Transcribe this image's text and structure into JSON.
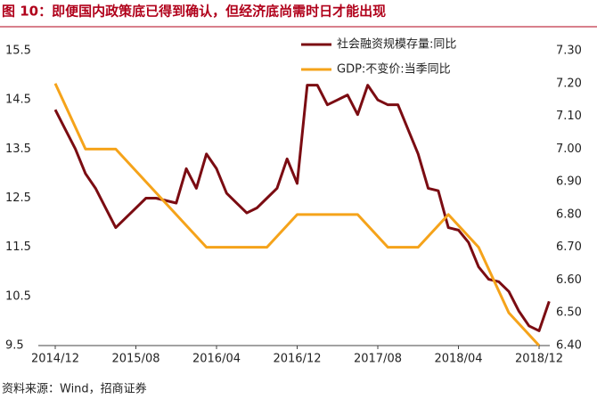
{
  "chart_data": {
    "type": "line",
    "title": "图 10：即便国内政策底已得到确认，但经济底尚需时日才能出现",
    "source": "资料来源：Wind，招商证券",
    "xticks": [
      "2014/12",
      "2015/08",
      "2016/04",
      "2016/12",
      "2017/08",
      "2018/04",
      "2018/12"
    ],
    "ylim": [
      9.5,
      15.5
    ],
    "yticks": [
      9.5,
      10.5,
      11.5,
      12.5,
      13.5,
      14.5,
      15.5
    ],
    "y2lim": [
      6.4,
      7.3
    ],
    "y2ticks": [
      {
        "value": 6.4,
        "label": "6.40"
      },
      {
        "value": 6.5,
        "label": "6.50"
      },
      {
        "value": 6.6,
        "label": "6.60"
      },
      {
        "value": 6.7,
        "label": "6.70"
      },
      {
        "value": 6.8,
        "label": "6.80"
      },
      {
        "value": 6.9,
        "label": "6.90"
      },
      {
        "value": 7.0,
        "label": "7.00"
      },
      {
        "value": 7.1,
        "label": "7.10"
      },
      {
        "value": 7.2,
        "label": "7.20"
      },
      {
        "value": 7.3,
        "label": "7.30"
      }
    ],
    "series": [
      {
        "name": "社会融资规模存量:同比",
        "color": "#7b0c12",
        "axis": "y",
        "x": [
          "2014/12",
          "2015/01",
          "2015/02",
          "2015/03",
          "2015/04",
          "2015/05",
          "2015/06",
          "2015/07",
          "2015/08",
          "2015/09",
          "2015/10",
          "2015/11",
          "2015/12",
          "2016/01",
          "2016/02",
          "2016/03",
          "2016/04",
          "2016/05",
          "2016/06",
          "2016/07",
          "2016/08",
          "2016/09",
          "2016/10",
          "2016/11",
          "2016/12",
          "2017/01",
          "2017/02",
          "2017/03",
          "2017/04",
          "2017/05",
          "2017/06",
          "2017/07",
          "2017/08",
          "2017/09",
          "2017/10",
          "2017/11",
          "2017/12",
          "2018/01",
          "2018/02",
          "2018/03",
          "2018/04",
          "2018/05",
          "2018/06",
          "2018/07",
          "2018/08",
          "2018/09",
          "2018/10",
          "2018/11",
          "2018/12",
          "2019/01"
        ],
        "values": [
          14.3,
          13.9,
          13.5,
          13.0,
          12.7,
          12.3,
          11.9,
          12.1,
          12.3,
          12.5,
          12.5,
          12.45,
          12.4,
          13.1,
          12.7,
          13.4,
          13.1,
          12.6,
          12.4,
          12.2,
          12.3,
          12.5,
          12.7,
          13.3,
          12.8,
          14.8,
          14.8,
          14.4,
          14.5,
          14.6,
          14.2,
          14.8,
          14.5,
          14.4,
          14.4,
          13.9,
          13.4,
          12.7,
          12.65,
          11.9,
          11.85,
          11.6,
          11.1,
          10.85,
          10.8,
          10.6,
          10.2,
          9.9,
          9.8,
          10.4
        ]
      },
      {
        "name": "GDP:不变价:当季同比",
        "color": "#f5a31a",
        "axis": "y2",
        "x": [
          "2014/12",
          "2015/03",
          "2015/06",
          "2015/09",
          "2015/12",
          "2016/03",
          "2016/06",
          "2016/09",
          "2016/12",
          "2017/03",
          "2017/06",
          "2017/09",
          "2017/12",
          "2018/03",
          "2018/06",
          "2018/09",
          "2018/12"
        ],
        "values": [
          7.2,
          7.0,
          7.0,
          6.9,
          6.8,
          6.7,
          6.7,
          6.7,
          6.8,
          6.8,
          6.8,
          6.7,
          6.7,
          6.8,
          6.7,
          6.5,
          6.4
        ]
      }
    ]
  }
}
